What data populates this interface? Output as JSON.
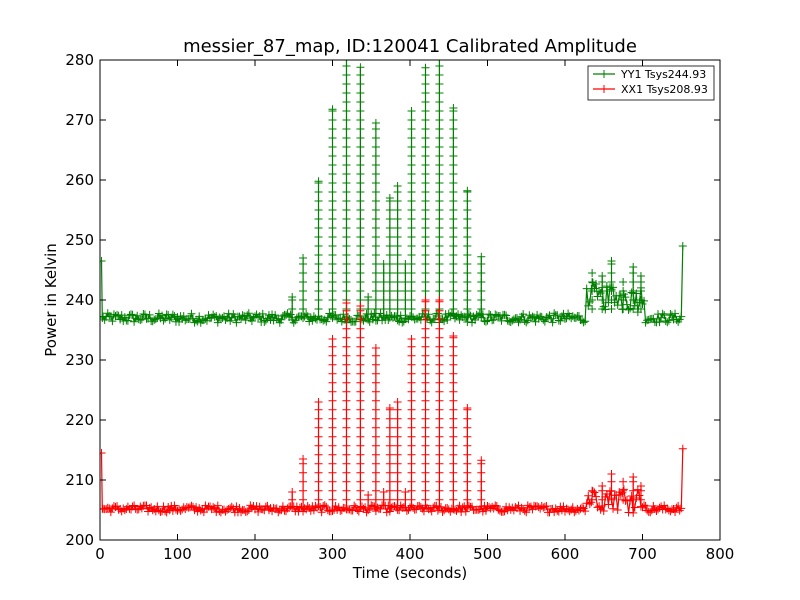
{
  "chart_data": {
    "type": "line",
    "title": "messier_87_map, ID:120041 Calibrated Amplitude",
    "xlabel": "Time (seconds)",
    "ylabel": "Power in Kelvin",
    "xlim": [
      0,
      800
    ],
    "ylim": [
      200,
      280
    ],
    "xticks": [
      0,
      100,
      200,
      300,
      400,
      500,
      600,
      700,
      800
    ],
    "yticks": [
      200,
      210,
      220,
      230,
      240,
      250,
      260,
      270,
      280
    ],
    "legend_position": "top-right",
    "grid": false,
    "marker": "+",
    "series": [
      {
        "name": "YY1 Tsys244.93",
        "color": "#008000",
        "baseline": 237,
        "start": [
          2,
          246.5
        ],
        "end": [
          752,
          249
        ],
        "spikes": [
          [
            248,
            240.5
          ],
          [
            262,
            247
          ],
          [
            282,
            259.8
          ],
          [
            300,
            271.8
          ],
          [
            318,
            280
          ],
          [
            336,
            278.8
          ],
          [
            346,
            240.5
          ],
          [
            356,
            269.5
          ],
          [
            366,
            246
          ],
          [
            374,
            257
          ],
          [
            384,
            259
          ],
          [
            394,
            246
          ],
          [
            402,
            271.5
          ],
          [
            420,
            278.7
          ],
          [
            438,
            280
          ],
          [
            456,
            272
          ],
          [
            474,
            258.2
          ],
          [
            492,
            247.2
          ],
          [
            635,
            245
          ],
          [
            648,
            244
          ],
          [
            660,
            246.5
          ],
          [
            675,
            244.5
          ],
          [
            688,
            245.5
          ],
          [
            698,
            244
          ]
        ],
        "bump_region": [
          628,
          702
        ],
        "bump_level": 240.5,
        "noise": 0.8
      },
      {
        "name": "XX1 Tsys208.93",
        "color": "#ff0000",
        "baseline": 205.2,
        "start": [
          2,
          214.5
        ],
        "end": [
          752,
          215.2
        ],
        "spikes": [
          [
            248,
            208
          ],
          [
            262,
            213.5
          ],
          [
            282,
            223
          ],
          [
            300,
            233.5
          ],
          [
            318,
            239.5
          ],
          [
            336,
            239
          ],
          [
            346,
            207.5
          ],
          [
            356,
            232
          ],
          [
            366,
            208
          ],
          [
            374,
            222
          ],
          [
            384,
            223
          ],
          [
            394,
            208
          ],
          [
            402,
            233.5
          ],
          [
            420,
            240
          ],
          [
            438,
            240
          ],
          [
            456,
            234
          ],
          [
            474,
            222
          ],
          [
            492,
            213.3
          ],
          [
            635,
            209.2
          ],
          [
            648,
            209
          ],
          [
            660,
            211
          ],
          [
            675,
            210
          ],
          [
            688,
            210.5
          ],
          [
            698,
            209
          ]
        ],
        "bump_region": [
          628,
          702
        ],
        "bump_level": 207,
        "noise": 0.6
      }
    ]
  }
}
